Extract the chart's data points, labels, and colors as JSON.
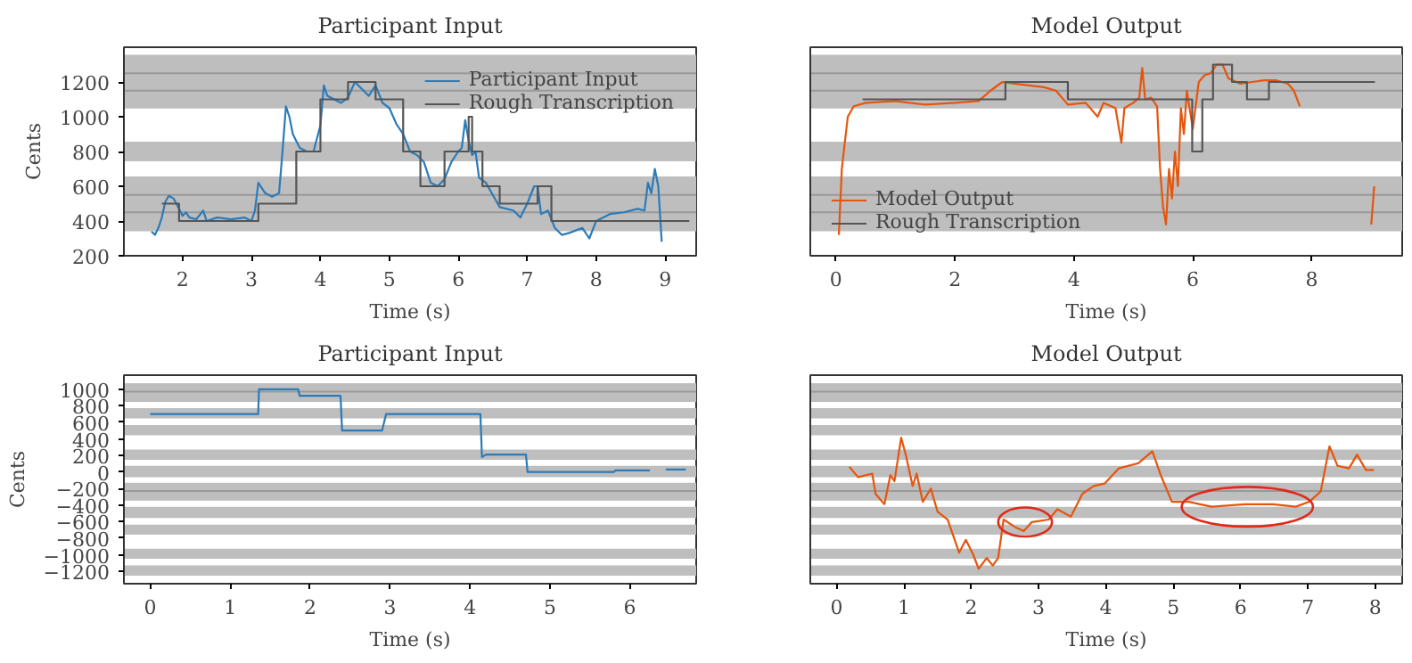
{
  "chart_data": [
    {
      "type": "line",
      "title": "Participant Input",
      "xlabel": "Time (s)",
      "ylabel": "Cents",
      "xlim": [
        1.15,
        9.45
      ],
      "ylim": [
        200,
        1400
      ],
      "xticks": [
        2,
        3,
        4,
        5,
        6,
        7,
        8,
        9
      ],
      "yticks": [
        200,
        400,
        600,
        800,
        1000,
        1200
      ],
      "legend": "top right",
      "grid": false,
      "bands": [
        {
          "axis": "y",
          "from": 1047,
          "to": 1356,
          "color": "#bebebe"
        },
        {
          "axis": "y",
          "from": 744,
          "to": 856,
          "color": "#bebebe"
        },
        {
          "axis": "y",
          "from": 341,
          "to": 656,
          "color": "#bebebe"
        }
      ],
      "ref_lines": [
        {
          "axis": "y",
          "value": 1250,
          "color": "#999999"
        },
        {
          "axis": "y",
          "value": 1150,
          "color": "#999999"
        },
        {
          "axis": "y",
          "value": 550,
          "color": "#999999"
        },
        {
          "axis": "y",
          "value": 450,
          "color": "#999999"
        }
      ],
      "series": [
        {
          "name": "Participant Input",
          "color": "#2b7bba",
          "x": [
            1.55,
            1.6,
            1.65,
            1.7,
            1.75,
            1.8,
            1.87,
            1.95,
            2.0,
            2.05,
            2.1,
            2.2,
            2.3,
            2.35,
            2.5,
            2.7,
            2.9,
            3.0,
            3.05,
            3.1,
            3.2,
            3.3,
            3.4,
            3.45,
            3.5,
            3.55,
            3.6,
            3.7,
            3.8,
            3.9,
            4.0,
            4.05,
            4.1,
            4.2,
            4.3,
            4.4,
            4.5,
            4.6,
            4.7,
            4.8,
            4.9,
            5.0,
            5.1,
            5.2,
            5.3,
            5.4,
            5.5,
            5.6,
            5.7,
            5.8,
            5.9,
            6.0,
            6.05,
            6.1,
            6.15,
            6.2,
            6.25,
            6.3,
            6.4,
            6.5,
            6.6,
            6.8,
            6.9,
            7.0,
            7.1,
            7.15,
            7.2,
            7.3,
            7.4,
            7.5,
            7.6,
            7.8,
            7.9,
            8.0,
            8.2,
            8.4,
            8.6,
            8.7,
            8.75,
            8.8,
            8.85,
            8.9,
            8.95
          ],
          "values": [
            340,
            320,
            360,
            420,
            510,
            545,
            530,
            470,
            430,
            450,
            420,
            410,
            460,
            400,
            420,
            410,
            420,
            400,
            460,
            620,
            560,
            540,
            560,
            800,
            1060,
            1000,
            900,
            820,
            800,
            800,
            950,
            1180,
            1120,
            1100,
            1080,
            1110,
            1200,
            1160,
            1120,
            1180,
            1080,
            1050,
            960,
            900,
            800,
            780,
            740,
            620,
            600,
            640,
            740,
            800,
            820,
            980,
            860,
            780,
            800,
            650,
            620,
            550,
            480,
            460,
            420,
            500,
            600,
            600,
            440,
            460,
            360,
            320,
            330,
            360,
            300,
            400,
            440,
            450,
            470,
            460,
            620,
            560,
            700,
            600,
            280
          ]
        },
        {
          "name": "Rough Transcription",
          "type": "step",
          "color": "#555555",
          "x": [
            1.7,
            1.95,
            3.1,
            3.65,
            4.0,
            4.4,
            4.8,
            5.2,
            5.45,
            5.8,
            6.15,
            6.2,
            6.35,
            6.6,
            7.15,
            7.35,
            9.35
          ],
          "values": [
            500,
            400,
            500,
            800,
            1100,
            1200,
            1100,
            800,
            600,
            800,
            1000,
            800,
            600,
            500,
            600,
            400,
            400
          ]
        }
      ]
    },
    {
      "type": "line",
      "title": "Model Output",
      "xlabel": "Time (s)",
      "xlim": [
        -0.43,
        9.52
      ],
      "ylim": [
        200,
        1400
      ],
      "xticks": [
        0,
        2,
        4,
        6,
        8
      ],
      "tick_labels": "x",
      "legend": "bottom left",
      "grid": false,
      "bands": [
        {
          "axis": "y",
          "from": 1047,
          "to": 1356,
          "color": "#bebebe"
        },
        {
          "axis": "y",
          "from": 744,
          "to": 856,
          "color": "#bebebe"
        },
        {
          "axis": "y",
          "from": 341,
          "to": 656,
          "color": "#bebebe"
        }
      ],
      "ref_lines": [
        {
          "axis": "y",
          "value": 1250,
          "color": "#999999"
        },
        {
          "axis": "y",
          "value": 1150,
          "color": "#999999"
        },
        {
          "axis": "y",
          "value": 550,
          "color": "#999999"
        },
        {
          "axis": "y",
          "value": 450,
          "color": "#999999"
        }
      ],
      "series": [
        {
          "name": "Model Output",
          "color": "#e6550d",
          "x": [
            0.05,
            0.1,
            0.2,
            0.3,
            0.5,
            1,
            1.5,
            2,
            2.4,
            2.6,
            2.8,
            3,
            3.5,
            3.7,
            3.9,
            4.2,
            4.4,
            4.5,
            4.7,
            4.8,
            4.85,
            5.0,
            5.1,
            5.15,
            5.2,
            5.3,
            5.4,
            5.45,
            5.5,
            5.55,
            5.6,
            5.65,
            5.7,
            5.75,
            5.8,
            5.85,
            5.9,
            6.0,
            6.1,
            6.2,
            6.3,
            6.4,
            6.5,
            6.6,
            6.8,
            7.0,
            7.2,
            7.4,
            7.6,
            7.7,
            7.8,
            8.4,
            9.0,
            9.05
          ],
          "values": [
            320,
            700,
            1000,
            1060,
            1080,
            1090,
            1070,
            1080,
            1090,
            1150,
            1200,
            1190,
            1170,
            1150,
            1070,
            1080,
            1000,
            1080,
            1050,
            850,
            1050,
            1080,
            1110,
            1280,
            1100,
            1110,
            1060,
            700,
            480,
            380,
            700,
            530,
            800,
            600,
            1050,
            900,
            1150,
            930,
            1200,
            1240,
            1250,
            1300,
            1300,
            1220,
            1190,
            1200,
            1210,
            1210,
            1190,
            1150,
            1060,
            null,
            380,
            600
          ]
        },
        {
          "name": "Rough Transcription",
          "type": "step",
          "color": "#555555",
          "x": [
            0.45,
            2.85,
            3.9,
            5.99,
            6.16,
            6.34,
            6.66,
            6.91,
            7.28,
            9.06
          ],
          "values": [
            1100,
            1200,
            1100,
            800,
            1100,
            1300,
            1200,
            1100,
            1200,
            1200
          ]
        }
      ]
    },
    {
      "type": "line",
      "title": "Participant Input",
      "xlabel": "Time (s)",
      "ylabel": "Cents",
      "xlim": [
        -0.33,
        6.83
      ],
      "ylim": [
        -1350,
        1170
      ],
      "xticks": [
        0,
        1,
        2,
        3,
        4,
        5,
        6
      ],
      "yticks": [
        -1200,
        -1000,
        -800,
        -600,
        -400,
        -200,
        0,
        200,
        400,
        600,
        800,
        1000
      ],
      "grid": false,
      "bands": [
        {
          "axis": "y",
          "from": 846,
          "to": 1074,
          "color": "#bebebe"
        },
        {
          "axis": "y",
          "from": 648,
          "to": 772,
          "color": "#bebebe"
        },
        {
          "axis": "y",
          "from": 444,
          "to": 568,
          "color": "#bebebe"
        },
        {
          "axis": "y",
          "from": 148,
          "to": 272,
          "color": "#bebebe"
        },
        {
          "axis": "y",
          "from": -62,
          "to": 74,
          "color": "#bebebe"
        },
        {
          "axis": "y",
          "from": -346,
          "to": -130,
          "color": "#bebebe"
        },
        {
          "axis": "y",
          "from": -556,
          "to": -420,
          "color": "#bebebe"
        },
        {
          "axis": "y",
          "from": -759,
          "to": -636,
          "color": "#bebebe"
        },
        {
          "axis": "y",
          "from": -1049,
          "to": -926,
          "color": "#bebebe"
        },
        {
          "axis": "y",
          "from": -1253,
          "to": -1130,
          "color": "#bebebe"
        }
      ],
      "ref_lines": [
        {
          "axis": "y",
          "value": 970,
          "color": "#999999"
        },
        {
          "axis": "y",
          "value": -230,
          "color": "#999999"
        }
      ],
      "series": [
        {
          "color": "#2b7bba",
          "x": [
            0,
            1.35,
            1.36,
            1.85,
            1.87,
            2.38,
            2.4,
            2.9,
            2.95,
            4.13,
            4.15,
            4.2,
            4.7,
            4.72,
            5.8,
            5.82,
            6.25,
            6.3,
            6.45,
            6.7
          ],
          "values": [
            700,
            700,
            1000,
            1000,
            920,
            920,
            500,
            500,
            700,
            700,
            180,
            210,
            210,
            0,
            0,
            20,
            20,
            null,
            30,
            30
          ]
        }
      ]
    },
    {
      "type": "line",
      "title": "Model Output",
      "xlabel": "Time (s)",
      "xlim": [
        -0.39,
        8.4
      ],
      "ylim": [
        -1350,
        1170
      ],
      "xticks": [
        0,
        1,
        2,
        3,
        4,
        5,
        6,
        7,
        8
      ],
      "tick_labels": "x",
      "grid": false,
      "bands": [
        {
          "axis": "y",
          "from": 846,
          "to": 1074,
          "color": "#bebebe"
        },
        {
          "axis": "y",
          "from": 648,
          "to": 772,
          "color": "#bebebe"
        },
        {
          "axis": "y",
          "from": 444,
          "to": 568,
          "color": "#bebebe"
        },
        {
          "axis": "y",
          "from": 148,
          "to": 272,
          "color": "#bebebe"
        },
        {
          "axis": "y",
          "from": -62,
          "to": 74,
          "color": "#bebebe"
        },
        {
          "axis": "y",
          "from": -346,
          "to": -130,
          "color": "#bebebe"
        },
        {
          "axis": "y",
          "from": -556,
          "to": -420,
          "color": "#bebebe"
        },
        {
          "axis": "y",
          "from": -759,
          "to": -636,
          "color": "#bebebe"
        },
        {
          "axis": "y",
          "from": -1049,
          "to": -926,
          "color": "#bebebe"
        },
        {
          "axis": "y",
          "from": -1253,
          "to": -1130,
          "color": "#bebebe"
        }
      ],
      "ref_lines": [
        {
          "axis": "y",
          "value": 970,
          "color": "#999999"
        },
        {
          "axis": "y",
          "value": -230,
          "color": "#999999"
        }
      ],
      "series": [
        {
          "color": "#e6550d",
          "x": [
            0.19,
            0.32,
            0.53,
            0.58,
            0.71,
            0.8,
            0.86,
            0.96,
            1.03,
            1.13,
            1.19,
            1.28,
            1.4,
            1.5,
            1.65,
            1.82,
            1.92,
            2.03,
            2.11,
            2.23,
            2.32,
            2.4,
            2.48,
            2.65,
            2.78,
            2.9,
            3.15,
            3.28,
            3.48,
            3.65,
            3.82,
            3.98,
            4.19,
            4.48,
            4.69,
            4.82,
            4.98,
            5.23,
            5.57,
            6.07,
            6.48,
            6.82,
            7.02,
            7.19,
            7.32,
            7.44,
            7.61,
            7.73,
            7.86,
            7.98
          ],
          "values": [
            62,
            -62,
            -20,
            -265,
            -390,
            -37,
            -110,
            414,
            200,
            -170,
            -20,
            -360,
            -200,
            -480,
            -575,
            -975,
            -820,
            -1000,
            -1170,
            -1040,
            -1130,
            -1040,
            -575,
            -665,
            -715,
            -605,
            -575,
            -450,
            -540,
            -265,
            -170,
            -140,
            43,
            105,
            250,
            -50,
            -360,
            -360,
            -420,
            -390,
            -390,
            -420,
            -360,
            -235,
            310,
            74,
            43,
            210,
            25,
            25
          ]
        }
      ]
    }
  ]
}
